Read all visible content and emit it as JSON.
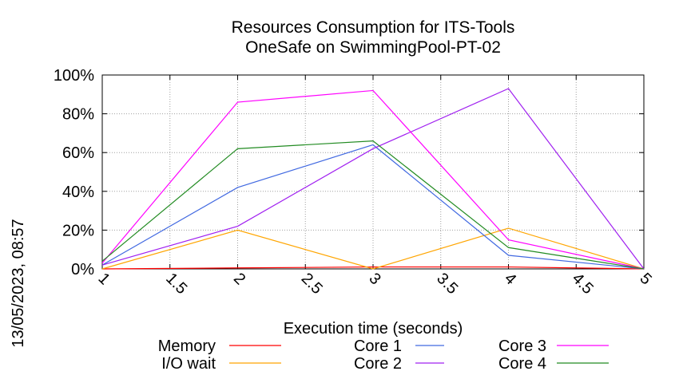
{
  "chart_data": {
    "type": "line",
    "title": "Resources Consumption for ITS-Tools",
    "subtitle": "OneSafe on SwimmingPool-PT-02",
    "xlabel": "Execution time (seconds)",
    "ylabel": "",
    "side_label": "13/05/2023, 08:57",
    "x": [
      1,
      2,
      3,
      4,
      5
    ],
    "xlim": [
      1,
      5
    ],
    "ylim": [
      0,
      100
    ],
    "x_ticks": [
      "1",
      "1.5",
      "2",
      "2.5",
      "3",
      "3.5",
      "4",
      "4.5",
      "5"
    ],
    "x_tick_values": [
      1,
      1.5,
      2,
      2.5,
      3,
      3.5,
      4,
      4.5,
      5
    ],
    "y_ticks": [
      "0%",
      "20%",
      "40%",
      "60%",
      "80%",
      "100%"
    ],
    "y_tick_values": [
      0,
      20,
      40,
      60,
      80,
      100
    ],
    "grid": true,
    "legend_position": "bottom",
    "series": [
      {
        "name": "Memory",
        "color": "#ff0000",
        "values": [
          0,
          0.5,
          1,
          1,
          0
        ]
      },
      {
        "name": "I/O wait",
        "color": "#ffa500",
        "values": [
          0,
          20,
          0,
          21,
          0
        ]
      },
      {
        "name": "Core 1",
        "color": "#4169e1",
        "values": [
          2,
          42,
          64,
          7,
          0
        ]
      },
      {
        "name": "Core 2",
        "color": "#a020f0",
        "values": [
          2,
          22,
          62,
          93,
          0
        ]
      },
      {
        "name": "Core 3",
        "color": "#ff00ff",
        "values": [
          3,
          86,
          92,
          15,
          0
        ]
      },
      {
        "name": "Core 4",
        "color": "#228b22",
        "values": [
          4,
          62,
          66,
          11,
          0
        ]
      }
    ]
  }
}
